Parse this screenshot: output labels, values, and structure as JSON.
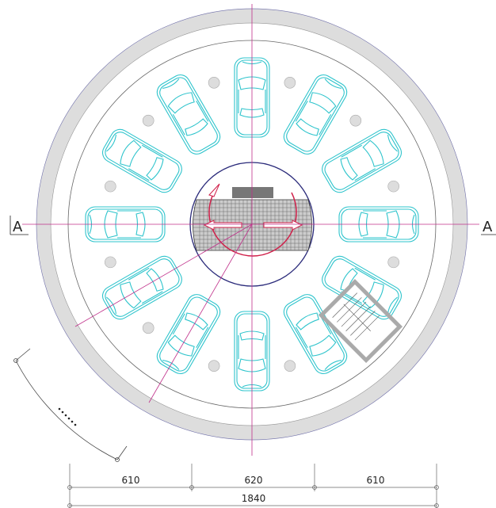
{
  "section_marks": [
    "A",
    "A"
  ],
  "dimensions": {
    "segments": [
      610,
      620,
      610
    ],
    "total": 1840
  }
}
